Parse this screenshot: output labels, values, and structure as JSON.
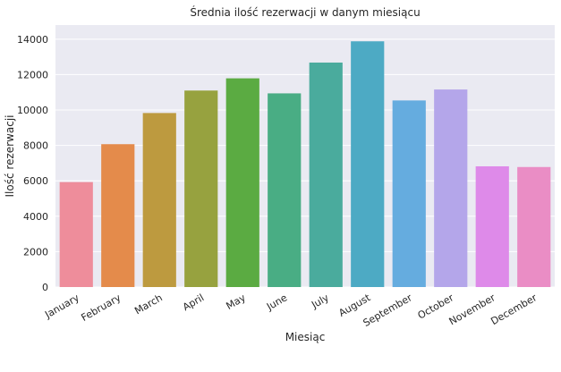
{
  "chart_data": {
    "type": "bar",
    "title": "Średnia ilość rezerwacji w danym miesiącu",
    "xlabel": "Miesiąc",
    "ylabel": "Ilość rezerwacji",
    "categories": [
      "January",
      "February",
      "March",
      "April",
      "May",
      "June",
      "July",
      "August",
      "September",
      "October",
      "November",
      "December"
    ],
    "values": [
      5930,
      8070,
      9830,
      11100,
      11790,
      10940,
      12680,
      13880,
      10540,
      11160,
      6820,
      6780
    ],
    "colors": [
      "#ee8d9b",
      "#e48b4b",
      "#bd9a3f",
      "#97a23f",
      "#5bab42",
      "#49ad84",
      "#4aab9d",
      "#4daac4",
      "#65acdf",
      "#b4a6ea",
      "#de8ae9",
      "#ea8dc5"
    ],
    "ylim": [
      0,
      14800
    ],
    "yticks": [
      0,
      2000,
      4000,
      6000,
      8000,
      10000,
      12000,
      14000
    ],
    "grid": true,
    "background": "#eaeaf2"
  }
}
